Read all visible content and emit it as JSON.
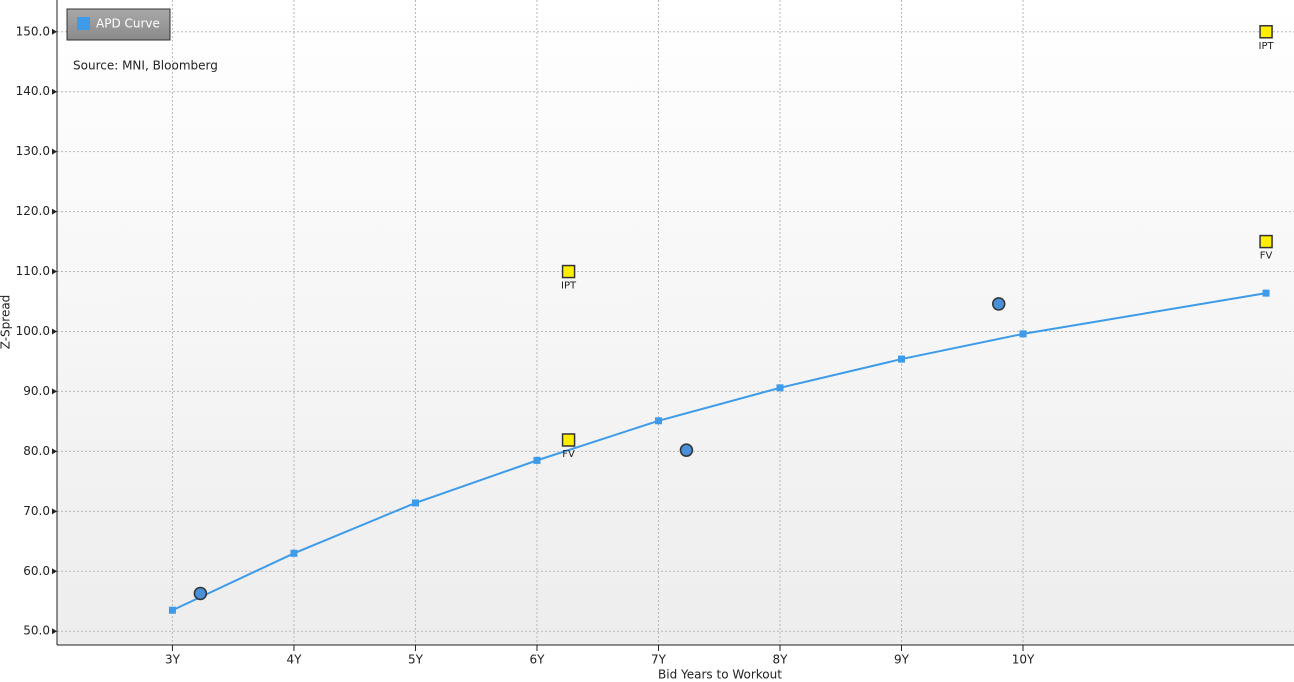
{
  "chart_data": {
    "type": "line",
    "source": "Source: MNI, Bloomberg",
    "x_label": "Bid Years to Workout",
    "y_label": "Z-Spread",
    "xlim": [
      2.05,
      12.23
    ],
    "ylim": [
      47.7,
      155.3
    ],
    "xticks": [
      {
        "value": 3,
        "label": "3Y"
      },
      {
        "value": 4,
        "label": "4Y"
      },
      {
        "value": 5,
        "label": "5Y"
      },
      {
        "value": 6,
        "label": "6Y"
      },
      {
        "value": 7,
        "label": "7Y"
      },
      {
        "value": 8,
        "label": "8Y"
      },
      {
        "value": 9,
        "label": "9Y"
      },
      {
        "value": 10,
        "label": "10Y"
      }
    ],
    "yticks": [
      {
        "value": 50,
        "label": "50.0"
      },
      {
        "value": 60,
        "label": "60.0"
      },
      {
        "value": 70,
        "label": "70.0"
      },
      {
        "value": 80,
        "label": "80.0"
      },
      {
        "value": 90,
        "label": "90.0"
      },
      {
        "value": 100,
        "label": "100.0"
      },
      {
        "value": 110,
        "label": "110.0"
      },
      {
        "value": 120,
        "label": "120.0"
      },
      {
        "value": 130,
        "label": "130.0"
      },
      {
        "value": 140,
        "label": "140.0"
      },
      {
        "value": 150,
        "label": "150.0"
      }
    ],
    "grid": true,
    "legend": "upper left",
    "series": [
      {
        "name": "APD Curve",
        "color": "#3d9be9",
        "x": [
          3,
          4,
          5,
          6,
          7,
          8,
          9,
          10,
          12
        ],
        "values": [
          53.5,
          63.0,
          71.4,
          78.5,
          85.1,
          90.6,
          95.4,
          99.6,
          106.4
        ]
      }
    ],
    "bonds": {
      "color": "#4a90d9",
      "x": [
        3.23,
        7.23,
        9.8
      ],
      "values": [
        56.3,
        80.2,
        104.6
      ]
    },
    "new_issues": {
      "color": "#ffee00",
      "x": [
        6.26,
        6.26,
        12,
        12
      ],
      "values": [
        110,
        81.9,
        150,
        115
      ],
      "labels": [
        "IPT",
        "FV",
        "IPT",
        "FV"
      ]
    }
  }
}
